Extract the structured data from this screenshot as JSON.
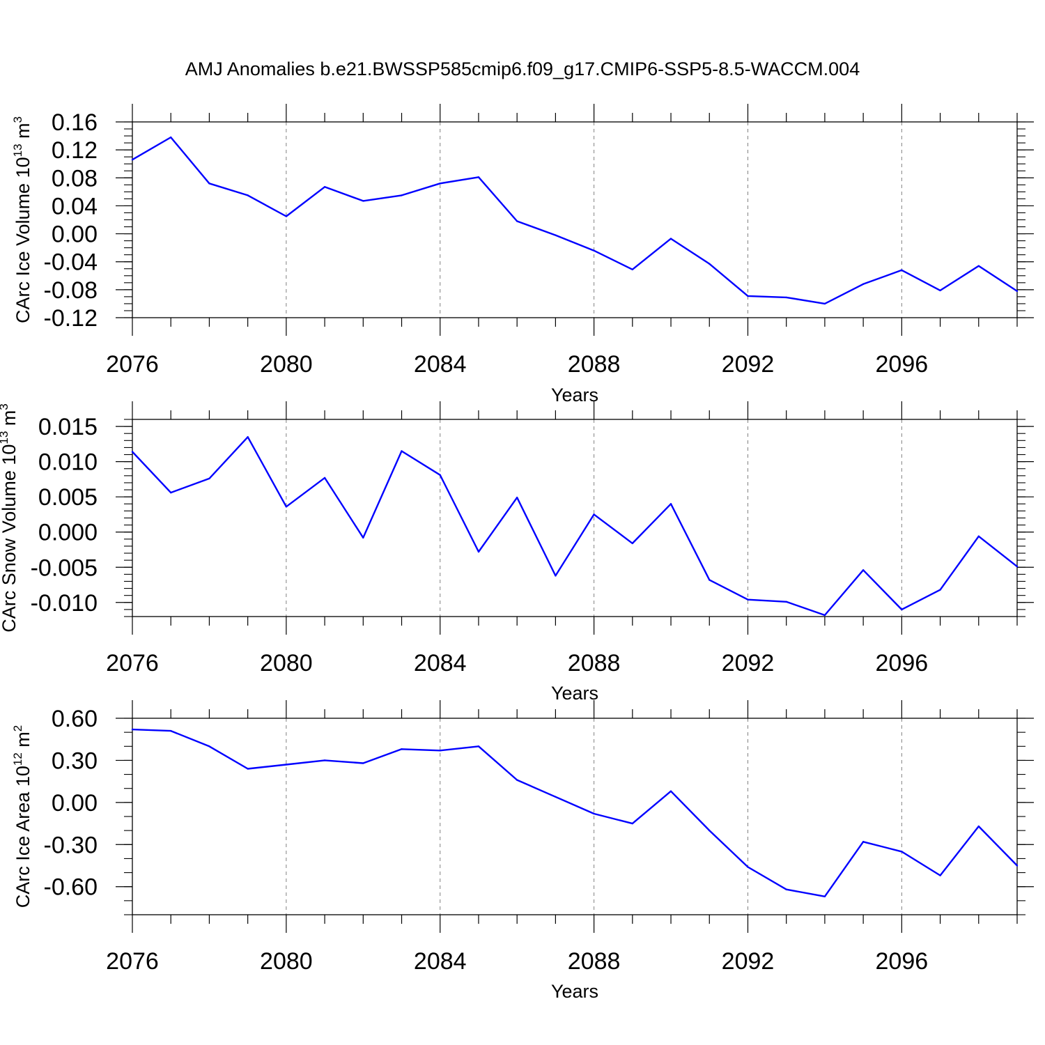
{
  "figure": {
    "title": "AMJ Anomalies b.e21.BWSSP585cmip6.f09_g17.CMIP6-SSP5-8.5-WACCM.004",
    "line_color": "#0000ff",
    "grid_color": "#808080"
  },
  "chart_data": [
    {
      "type": "line",
      "ylabel_main": "CArc Ice Volume 10",
      "ylabel_exp": "13",
      "ylabel_unit": " m",
      "ylabel_unit_exp": "3",
      "xlabel": "Years",
      "xlim": [
        2076,
        2099
      ],
      "ylim": [
        -0.12,
        0.16
      ],
      "xticks": [
        2076,
        2080,
        2084,
        2088,
        2092,
        2096
      ],
      "xtick_labels": [
        "2076",
        "2080",
        "2084",
        "2088",
        "2092",
        "2096"
      ],
      "yticks": [
        -0.12,
        -0.08,
        -0.04,
        0.0,
        0.04,
        0.08,
        0.12,
        0.16
      ],
      "ytick_labels": [
        "-0.12",
        "-0.08",
        "-0.04",
        "0.00",
        "0.04",
        "0.08",
        "0.12",
        "0.16"
      ],
      "y_minor_step": 0.01,
      "grid": "vertical dashed at major x ticks",
      "series": [
        {
          "x": [
            2076,
            2077,
            2078,
            2079,
            2080,
            2081,
            2082,
            2083,
            2084,
            2085,
            2086,
            2087,
            2088,
            2089,
            2090,
            2091,
            2092,
            2093,
            2094,
            2095,
            2096,
            2097,
            2098,
            2099
          ],
          "values": [
            0.106,
            0.138,
            0.072,
            0.055,
            0.025,
            0.067,
            0.047,
            0.055,
            0.072,
            0.081,
            0.018,
            -0.002,
            -0.024,
            -0.051,
            -0.007,
            -0.043,
            -0.089,
            -0.091,
            -0.1,
            -0.072,
            -0.052,
            -0.081,
            -0.046,
            -0.082
          ]
        }
      ]
    },
    {
      "type": "line",
      "ylabel_main": "CArc Snow Volume 10",
      "ylabel_exp": "13",
      "ylabel_unit": " m",
      "ylabel_unit_exp": "3",
      "xlabel": "Years",
      "xlim": [
        2076,
        2099
      ],
      "ylim": [
        -0.012,
        0.016
      ],
      "xticks": [
        2076,
        2080,
        2084,
        2088,
        2092,
        2096
      ],
      "xtick_labels": [
        "2076",
        "2080",
        "2084",
        "2088",
        "2092",
        "2096"
      ],
      "yticks": [
        -0.01,
        -0.005,
        0.0,
        0.005,
        0.01,
        0.015
      ],
      "ytick_labels": [
        "-0.010",
        "-0.005",
        "0.000",
        "0.005",
        "0.010",
        "0.015"
      ],
      "y_minor_step": 0.001,
      "grid": "vertical dashed at major x ticks",
      "series": [
        {
          "x": [
            2076,
            2077,
            2078,
            2079,
            2080,
            2081,
            2082,
            2083,
            2084,
            2085,
            2086,
            2087,
            2088,
            2089,
            2090,
            2091,
            2092,
            2093,
            2094,
            2095,
            2096,
            2097,
            2098,
            2099
          ],
          "values": [
            0.0114,
            0.0056,
            0.0076,
            0.0135,
            0.0036,
            0.0077,
            -0.0008,
            0.0115,
            0.0081,
            -0.0028,
            0.0049,
            -0.0062,
            0.0025,
            -0.0016,
            0.004,
            -0.0068,
            -0.0096,
            -0.0099,
            -0.0118,
            -0.0054,
            -0.011,
            -0.0082,
            -0.0006,
            -0.0049
          ]
        }
      ]
    },
    {
      "type": "line",
      "ylabel_main": "CArc Ice Area 10",
      "ylabel_exp": "12",
      "ylabel_unit": " m",
      "ylabel_unit_exp": "2",
      "xlabel": "Years",
      "xlim": [
        2076,
        2099
      ],
      "ylim": [
        -0.8,
        0.6
      ],
      "xticks": [
        2076,
        2080,
        2084,
        2088,
        2092,
        2096
      ],
      "xtick_labels": [
        "2076",
        "2080",
        "2084",
        "2088",
        "2092",
        "2096"
      ],
      "yticks": [
        -0.6,
        -0.3,
        0.0,
        0.3,
        0.6
      ],
      "ytick_labels": [
        "-0.60",
        "-0.30",
        "0.00",
        "0.30",
        "0.60"
      ],
      "y_minor_step": 0.1,
      "grid": "vertical dashed at major x ticks",
      "series": [
        {
          "x": [
            2076,
            2077,
            2078,
            2079,
            2080,
            2081,
            2082,
            2083,
            2084,
            2085,
            2086,
            2087,
            2088,
            2089,
            2090,
            2091,
            2092,
            2093,
            2094,
            2095,
            2096,
            2097,
            2098,
            2099
          ],
          "values": [
            0.52,
            0.51,
            0.4,
            0.24,
            0.27,
            0.3,
            0.28,
            0.38,
            0.37,
            0.4,
            0.16,
            0.04,
            -0.08,
            -0.15,
            0.08,
            -0.2,
            -0.46,
            -0.62,
            -0.67,
            -0.28,
            -0.35,
            -0.52,
            -0.17,
            -0.45
          ]
        }
      ]
    }
  ]
}
